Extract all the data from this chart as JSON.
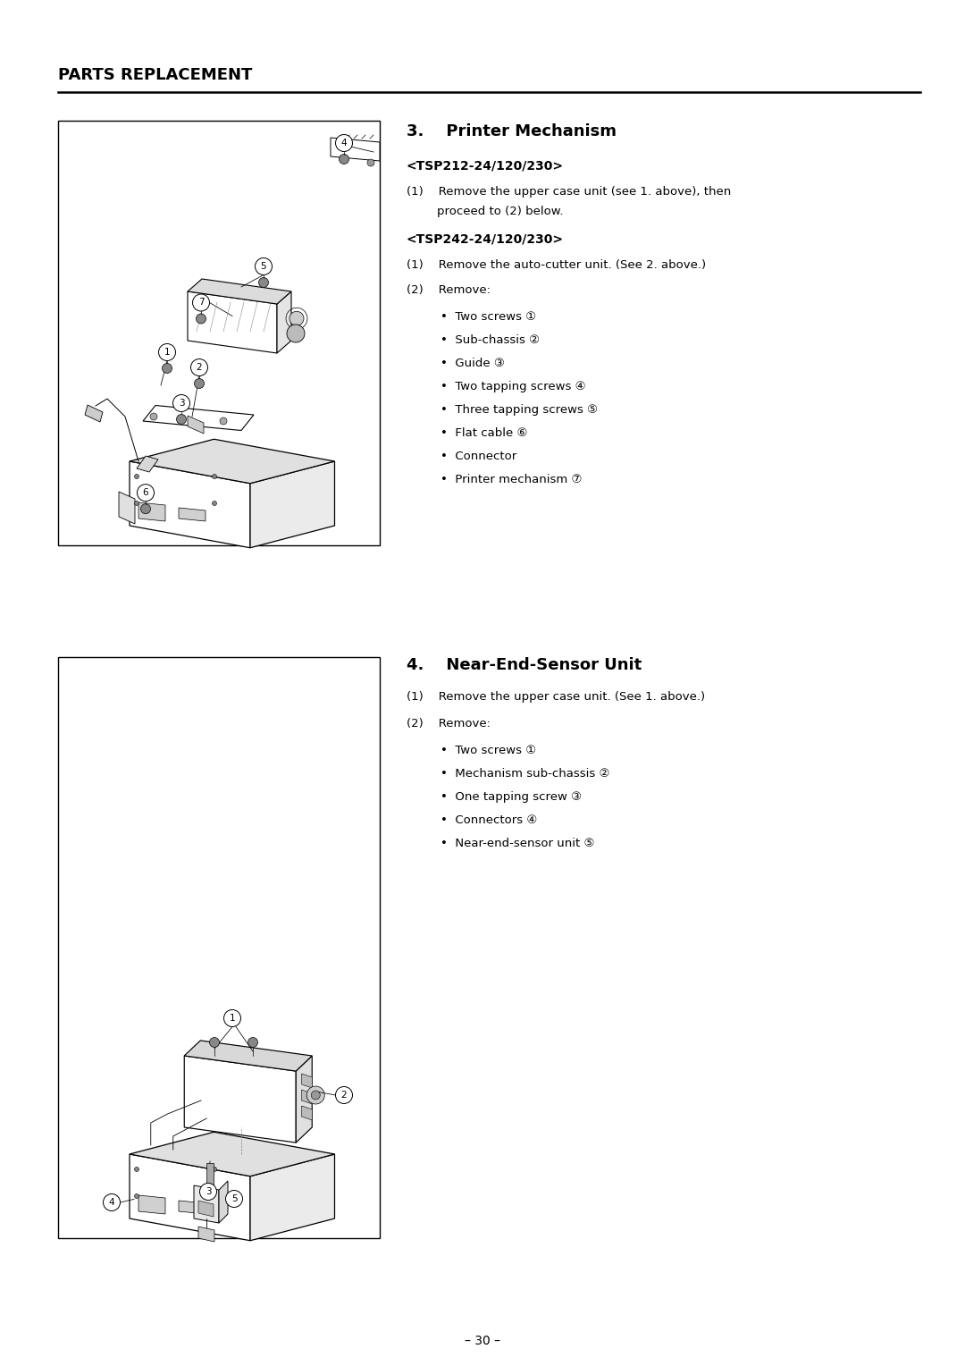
{
  "bg_color": "#ffffff",
  "page_title": "PARTS REPLACEMENT",
  "section3_title": "3.    Printer Mechanism",
  "section3_sub1": "<TSP212-24/120/230>",
  "section3_p1a": "(1)    Remove the upper case unit (see 1. above), then",
  "section3_p1b": "        proceed to (2) below.",
  "section3_sub2": "<TSP242-24/120/230>",
  "section3_p2_1": "(1)    Remove the auto-cutter unit. (See 2. above.)",
  "section3_p2_2": "(2)    Remove:",
  "section3_bullets": [
    "Two screws ①",
    "Sub-chassis ②",
    "Guide ③",
    "Two tapping screws ④",
    "Three tapping screws ⑤",
    "Flat cable ⑥",
    "Connector",
    "Printer mechanism ⑦"
  ],
  "section4_title": "4.    Near-End-Sensor Unit",
  "section4_p1": "(1)    Remove the upper case unit. (See 1. above.)",
  "section4_p2": "(2)    Remove:",
  "section4_bullets": [
    "Two screws ①",
    "Mechanism sub-chassis ②",
    "One tapping screw ③",
    "Connectors ④",
    "Near-end-sensor unit ⑤"
  ],
  "page_number": "– 30 –",
  "text_color": "#000000",
  "line_color": "#000000",
  "fig_width": 10.8,
  "fig_height": 15.28,
  "dpi": 100
}
